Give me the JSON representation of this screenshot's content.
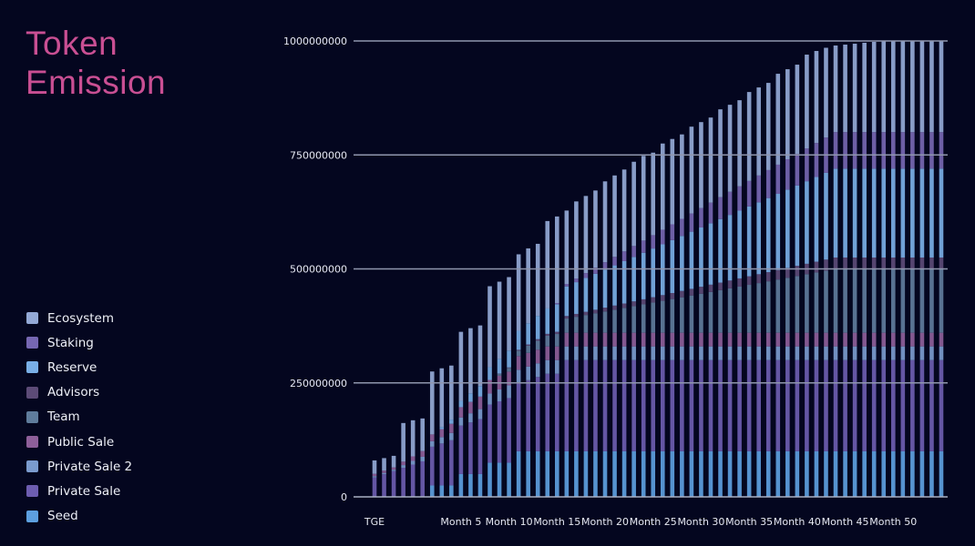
{
  "title": [
    "Token",
    "Emission"
  ],
  "chart_data": {
    "type": "bar",
    "stacked": true,
    "title": "Token Emission",
    "xlabel": "",
    "ylabel": "",
    "ylim": [
      0,
      1000000000
    ],
    "y_ticks": [
      "0",
      "250000000",
      "500000000",
      "750000000",
      "1000000000"
    ],
    "y_tick_values": [
      0,
      250000000,
      500000000,
      750000000,
      1000000000
    ],
    "x_tick_labels": [
      "TGE",
      "Month 5",
      "Month 10",
      "Month 15",
      "Month 20",
      "Month 25",
      "Month 30",
      "Month 35",
      "Month 40",
      "Month 45",
      "Month 50"
    ],
    "num_periods": 60,
    "legend_position": "left",
    "series_legend_order": [
      {
        "name": "Ecosystem",
        "color": "#94a9d6"
      },
      {
        "name": "Staking",
        "color": "#7667b2"
      },
      {
        "name": "Reserve",
        "color": "#79afe6"
      },
      {
        "name": "Advisors",
        "color": "#5c4b77"
      },
      {
        "name": "Team",
        "color": "#5f7c9c"
      },
      {
        "name": "Public Sale",
        "color": "#8e5f9a"
      },
      {
        "name": "Private Sale 2",
        "color": "#7b9bce"
      },
      {
        "name": "Private Sale",
        "color": "#6d5db0"
      },
      {
        "name": "Seed",
        "color": "#5d9fe0"
      }
    ],
    "stack_order_bottom_to_top": [
      "Seed",
      "Private Sale",
      "Private Sale 2",
      "Public Sale",
      "Team",
      "Advisors",
      "Reserve",
      "Staking",
      "Ecosystem"
    ],
    "cumulative_top": [
      80000000,
      85000000,
      90000000,
      162000000,
      168000000,
      172000000,
      275000000,
      282000000,
      288000000,
      362000000,
      370000000,
      376000000,
      462000000,
      472000000,
      482000000,
      532000000,
      545000000,
      555000000,
      605000000,
      615000000,
      628000000,
      648000000,
      660000000,
      672000000,
      692000000,
      705000000,
      718000000,
      735000000,
      748000000,
      755000000,
      775000000,
      785000000,
      795000000,
      812000000,
      822000000,
      832000000,
      850000000,
      860000000,
      870000000,
      888000000,
      898000000,
      908000000,
      928000000,
      938000000,
      948000000,
      970000000,
      978000000,
      985000000,
      990000000,
      992000000,
      994000000,
      996000000,
      998000000,
      999000000,
      1000000000,
      1000000000,
      1000000000,
      1000000000,
      1000000000,
      1000000000
    ]
  }
}
